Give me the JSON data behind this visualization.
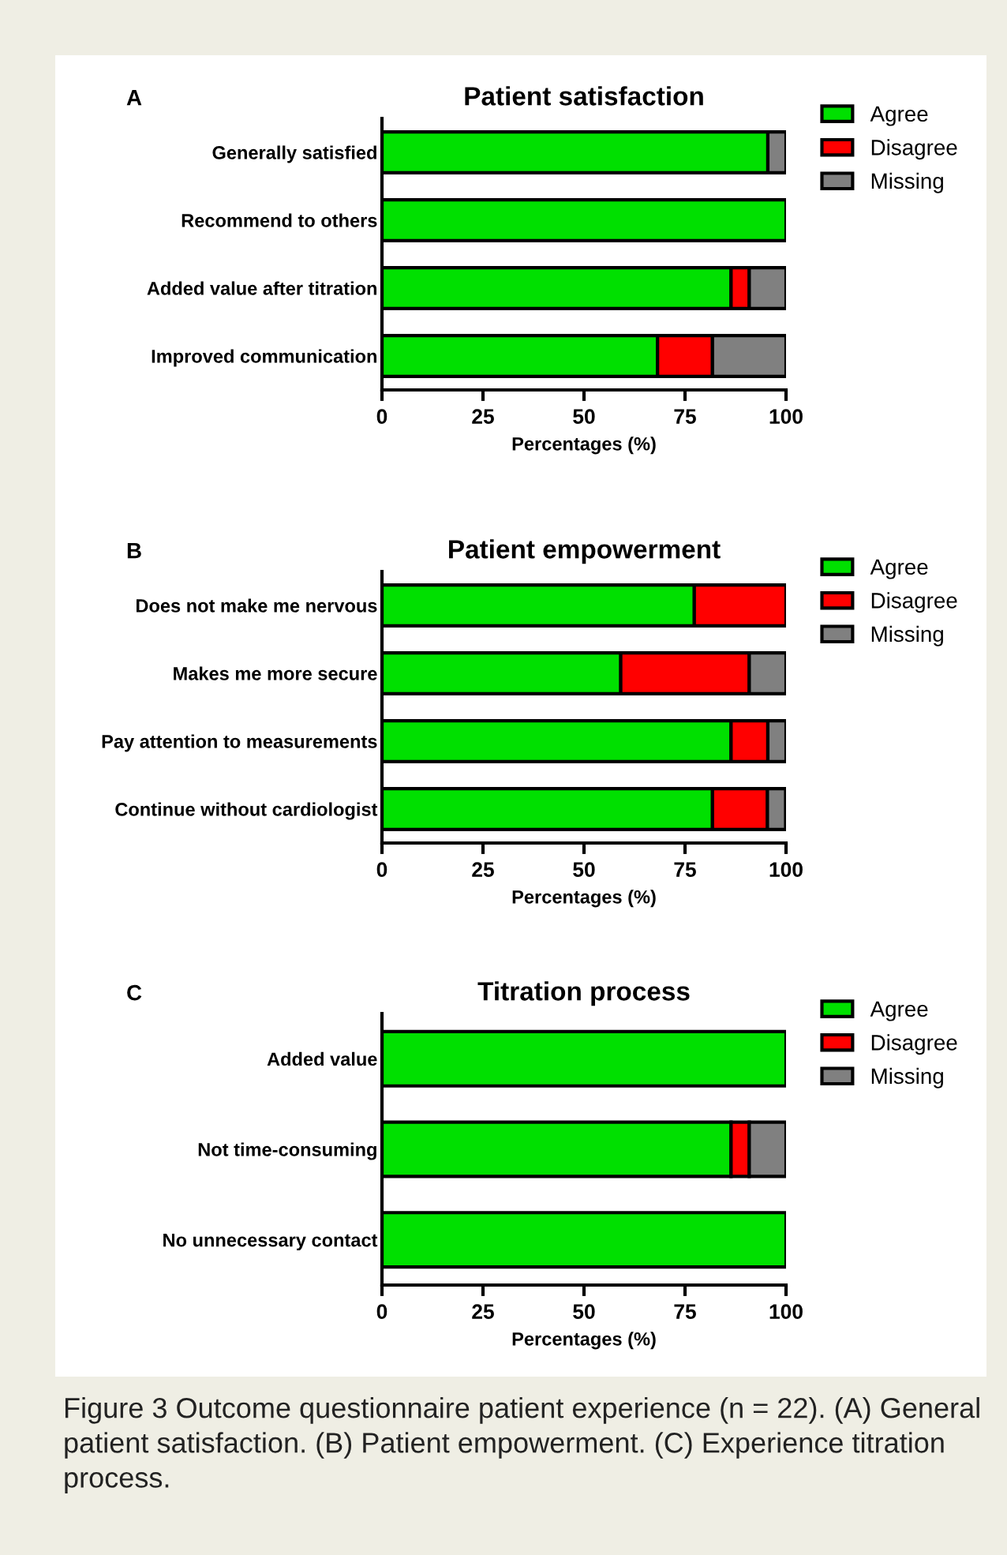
{
  "chart_data": [
    {
      "type": "bar",
      "orientation": "horizontal",
      "stacked": true,
      "title": "Patient satisfaction",
      "xlabel": "Percentages (%)",
      "annotations": [
        "A"
      ],
      "categories": [
        "Generally satisfied",
        "Recommend to others",
        "Added value after titration",
        "Improved communication"
      ],
      "series": [
        {
          "name": "Agree",
          "color": "#00e000",
          "values": [
            95.5,
            100,
            86.4,
            68.2
          ]
        },
        {
          "name": "Disagree",
          "color": "#ff0000",
          "values": [
            0,
            0,
            4.5,
            13.6
          ]
        },
        {
          "name": "Missing",
          "color": "#808080",
          "values": [
            4.5,
            0,
            9.1,
            18.2
          ]
        }
      ],
      "xlim": [
        0,
        100
      ],
      "xticks": [
        0,
        25,
        50,
        75,
        100
      ],
      "legend": "top right",
      "grid": false
    },
    {
      "type": "bar",
      "orientation": "horizontal",
      "stacked": true,
      "title": "Patient empowerment",
      "xlabel": "Percentages (%)",
      "annotations": [
        "B"
      ],
      "categories": [
        "Does not make me nervous",
        "Makes me more secure",
        "Pay attention to measurements",
        "Continue without cardiologist"
      ],
      "series": [
        {
          "name": "Agree",
          "color": "#00e000",
          "values": [
            77.3,
            59.1,
            86.4,
            81.8
          ]
        },
        {
          "name": "Disagree",
          "color": "#ff0000",
          "values": [
            22.7,
            31.8,
            9.1,
            13.6
          ]
        },
        {
          "name": "Missing",
          "color": "#808080",
          "values": [
            0,
            9.1,
            4.5,
            4.5
          ]
        }
      ],
      "xlim": [
        0,
        100
      ],
      "xticks": [
        0,
        25,
        50,
        75,
        100
      ],
      "legend": "top right",
      "grid": false
    },
    {
      "type": "bar",
      "orientation": "horizontal",
      "stacked": true,
      "title": "Titration process",
      "xlabel": "Percentages (%)",
      "annotations": [
        "C",
        "Figure 3 Outcome questionnaire patient experience (n = 22). (A) General patient satisfaction. (B) Patient empowerment. (C) Experience titration process."
      ],
      "categories": [
        "Added value",
        "Not time-consuming",
        "No unnecessary contact"
      ],
      "series": [
        {
          "name": "Agree",
          "color": "#00e000",
          "values": [
            100,
            86.4,
            100
          ]
        },
        {
          "name": "Disagree",
          "color": "#ff0000",
          "values": [
            0,
            4.5,
            0
          ]
        },
        {
          "name": "Missing",
          "color": "#808080",
          "values": [
            0,
            9.1,
            0
          ]
        }
      ],
      "xlim": [
        0,
        100
      ],
      "xticks": [
        0,
        25,
        50,
        75,
        100
      ],
      "legend": "top right",
      "grid": false
    }
  ]
}
